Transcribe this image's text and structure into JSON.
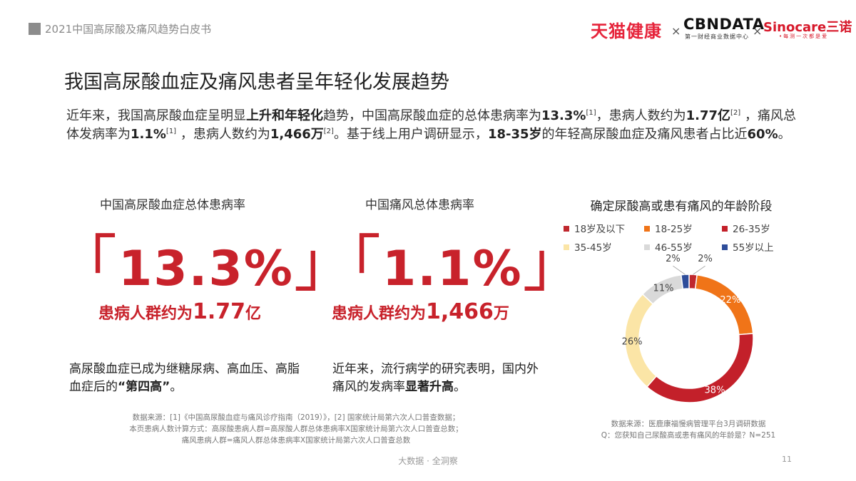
{
  "header": {
    "doc_title": "2021中国高尿酸及痛风趋势白皮书",
    "logos": {
      "tmall": "天猫健康",
      "cbndata": "CBNDATA",
      "cbndata_sub": "第一财经商业数据中心",
      "sinocare": "Sinocare三诺",
      "sinocare_sub": "•每测一次都是爱",
      "separator": "×"
    }
  },
  "title": "我国高尿酸血症及痛风患者呈年轻化发展趋势",
  "intro": {
    "p1": "近年来，我国高尿酸血症呈明显",
    "b1": "上升和年轻化",
    "p2": "趋势，中国高尿酸血症的总体患病率为",
    "b2": "13.3%",
    "s1": "[1]",
    "p3": "，患病人数约为",
    "b3": "1.77亿",
    "s2": "[2]",
    "p4": " ，痛风总体发病率为",
    "b4": "1.1%",
    "s3": "[1]",
    "p5": " ，患病人数约为",
    "b5": "1,466万",
    "s4": "[2]",
    "p6": "。基于线上用户调研显示，",
    "b6": "18-35岁",
    "p7": "的年轻高尿酸血症及痛风患者占比近",
    "b7": "60%",
    "p8": "。"
  },
  "stats": [
    {
      "caption": "中国高尿酸血症总体患病率",
      "bracket_open": "「",
      "value": "13.3%",
      "bracket_close": "」",
      "patients_prefix": "患病人群约为",
      "patients_num": "1.77",
      "patients_unit": "亿",
      "desc_plain": "高尿酸血症已成为继糖尿病、高血压、高脂血症后的",
      "desc_bold": "“第四高”",
      "desc_end": "。"
    },
    {
      "caption": "中国痛风总体患病率",
      "bracket_open": "「",
      "value": "1.1%",
      "bracket_close": "」",
      "patients_prefix": "患病人群约为",
      "patients_num": "1,466",
      "patients_unit": "万",
      "desc_plain": "近年来，流行病学的研究表明，国内外痛风的发病率",
      "desc_bold": "显著升高",
      "desc_end": "。"
    }
  ],
  "source_left": [
    "数据来源：[1]《中国高尿酸血症与痛风诊疗指南（2019）》，[2] 国家统计局第六次人口普查数据；",
    "本页患病人数计算方式：高尿酸患病人群=高尿酸人群总体患病率X国家统计局第六次人口普查总数；",
    "痛风患病人群=痛风人群总体患病率X国家统计局第六次人口普查总数"
  ],
  "chart_data": {
    "type": "pie",
    "title": "确定尿酸高或患有痛风的年龄阶段",
    "legend_position": "top",
    "categories": [
      "18岁及以下",
      "18-25岁",
      "26-35岁",
      "35-45岁",
      "46-55岁",
      "55岁以上"
    ],
    "values": [
      2,
      22,
      38,
      26,
      11,
      2
    ],
    "labels": [
      "2%",
      "22%",
      "38%",
      "26%",
      "11%",
      "2%"
    ],
    "colors": [
      "#c0282e",
      "#f07418",
      "#c3202a",
      "#fbe5a6",
      "#d9d9d9",
      "#2e4d9a"
    ],
    "donut": true
  },
  "source_right": [
    "数据来源：医鹿康福慢病管理平台3月调研数据",
    "Q：您获知自己尿酸高或患有痛风的年龄是？N=251"
  ],
  "footer": {
    "text": "大数据 · 全洞察",
    "page": "11"
  }
}
